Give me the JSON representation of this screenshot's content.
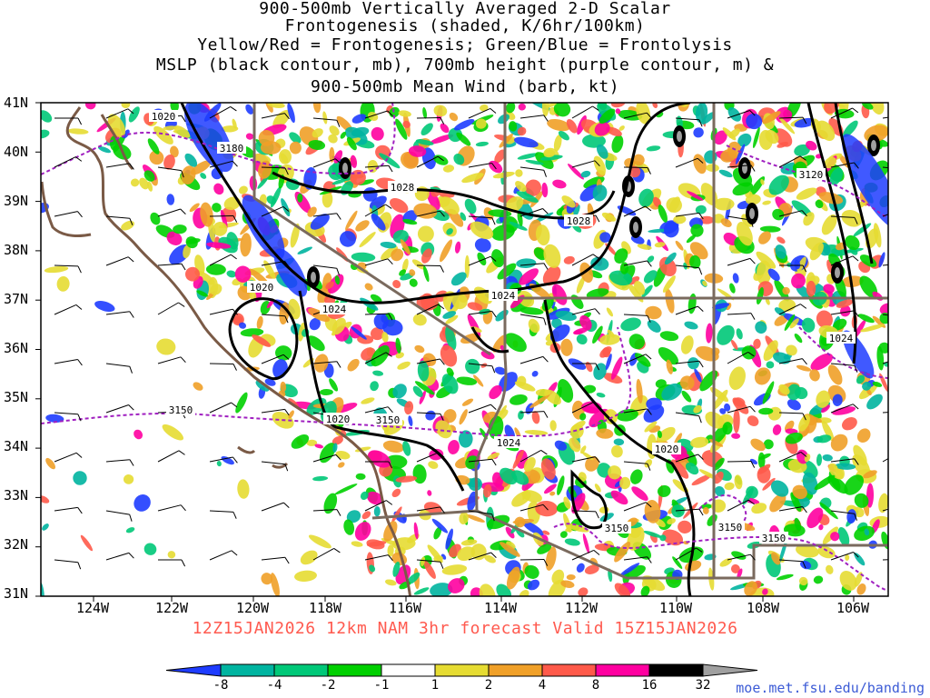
{
  "titles": [
    "900-500mb Vertically Averaged 2-D Scalar",
    "Frontogenesis (shaded, K/6hr/100km)",
    "Yellow/Red = Frontogenesis;  Green/Blue = Frontolysis",
    "MSLP (black contour, mb), 700mb height (purple contour, m) &",
    "900-500mb Mean Wind (barb, kt)"
  ],
  "map": {
    "lat_labels": [
      "41N",
      "40N",
      "39N",
      "38N",
      "37N",
      "36N",
      "35N",
      "34N",
      "33N",
      "32N",
      "31N"
    ],
    "lon_labels": [
      "124W",
      "122W",
      "120W",
      "118W",
      "116W",
      "114W",
      "112W",
      "110W",
      "108W",
      "106W"
    ],
    "mslp_labels": [
      "1020",
      "1028",
      "1028",
      "1020",
      "1024",
      "1024",
      "1020",
      "1024",
      "1020",
      "1024"
    ],
    "height_labels": [
      "3180",
      "3120",
      "3150",
      "3150",
      "3150",
      "3150",
      "3150"
    ]
  },
  "footer": "12Z15JAN2026 12km NAM 3hr forecast Valid 15Z15JAN2026",
  "credit": "moe.met.fsu.edu/banding",
  "colorbar": {
    "labels": [
      "-8",
      "-4",
      "-2",
      "-1",
      "1",
      "2",
      "4",
      "8",
      "16",
      "32"
    ],
    "colors": [
      "#1e3cff",
      "#00b4a0",
      "#00c878",
      "#00d000",
      "#ffffff",
      "#e6dc32",
      "#f0a028",
      "#ff5a4a",
      "#ff00a0",
      "#000000",
      "#a0a0a0"
    ]
  },
  "palette": {
    "frontogenesis": [
      "#e6dc32",
      "#f0a028",
      "#ff5a4a",
      "#ff00a0",
      "#000000"
    ],
    "frontolysis": [
      "#00d000",
      "#00c878",
      "#00b4a0",
      "#1e3cff"
    ],
    "mslp": "#000000",
    "height": "#a020c0",
    "coast": "#7a5a46",
    "state_border": "#7a6a5e"
  }
}
